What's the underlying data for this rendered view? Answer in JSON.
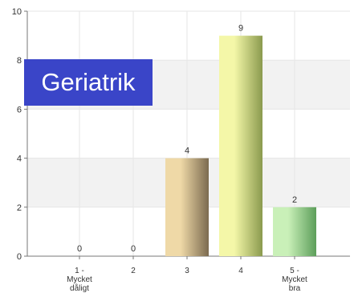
{
  "chart_data": {
    "type": "bar",
    "categories": [
      [
        "1 -",
        "Mycket",
        "dåligt"
      ],
      [
        "2"
      ],
      [
        "3"
      ],
      [
        "4"
      ],
      [
        "5 -",
        "Mycket",
        "bra"
      ]
    ],
    "values": [
      0,
      0,
      4,
      9,
      2
    ],
    "data_labels": [
      "0",
      "0",
      "4",
      "9",
      "2"
    ],
    "ylim": [
      0,
      10
    ],
    "yticks": [
      0,
      2,
      4,
      6,
      8,
      10
    ],
    "grid": "horizontal bands",
    "title": "Geriatrik",
    "title_color": "#3a45c8",
    "bar_colors": [
      [
        "#e9d6ae",
        "#7a6a4c"
      ],
      [
        "#e9d6ae",
        "#7a6a4c"
      ],
      [
        "#efd9a7",
        "#7b6a4f"
      ],
      [
        "#f4f7a8",
        "#8a9a4e"
      ],
      [
        "#c9f0b8",
        "#5c9e5a"
      ]
    ]
  }
}
